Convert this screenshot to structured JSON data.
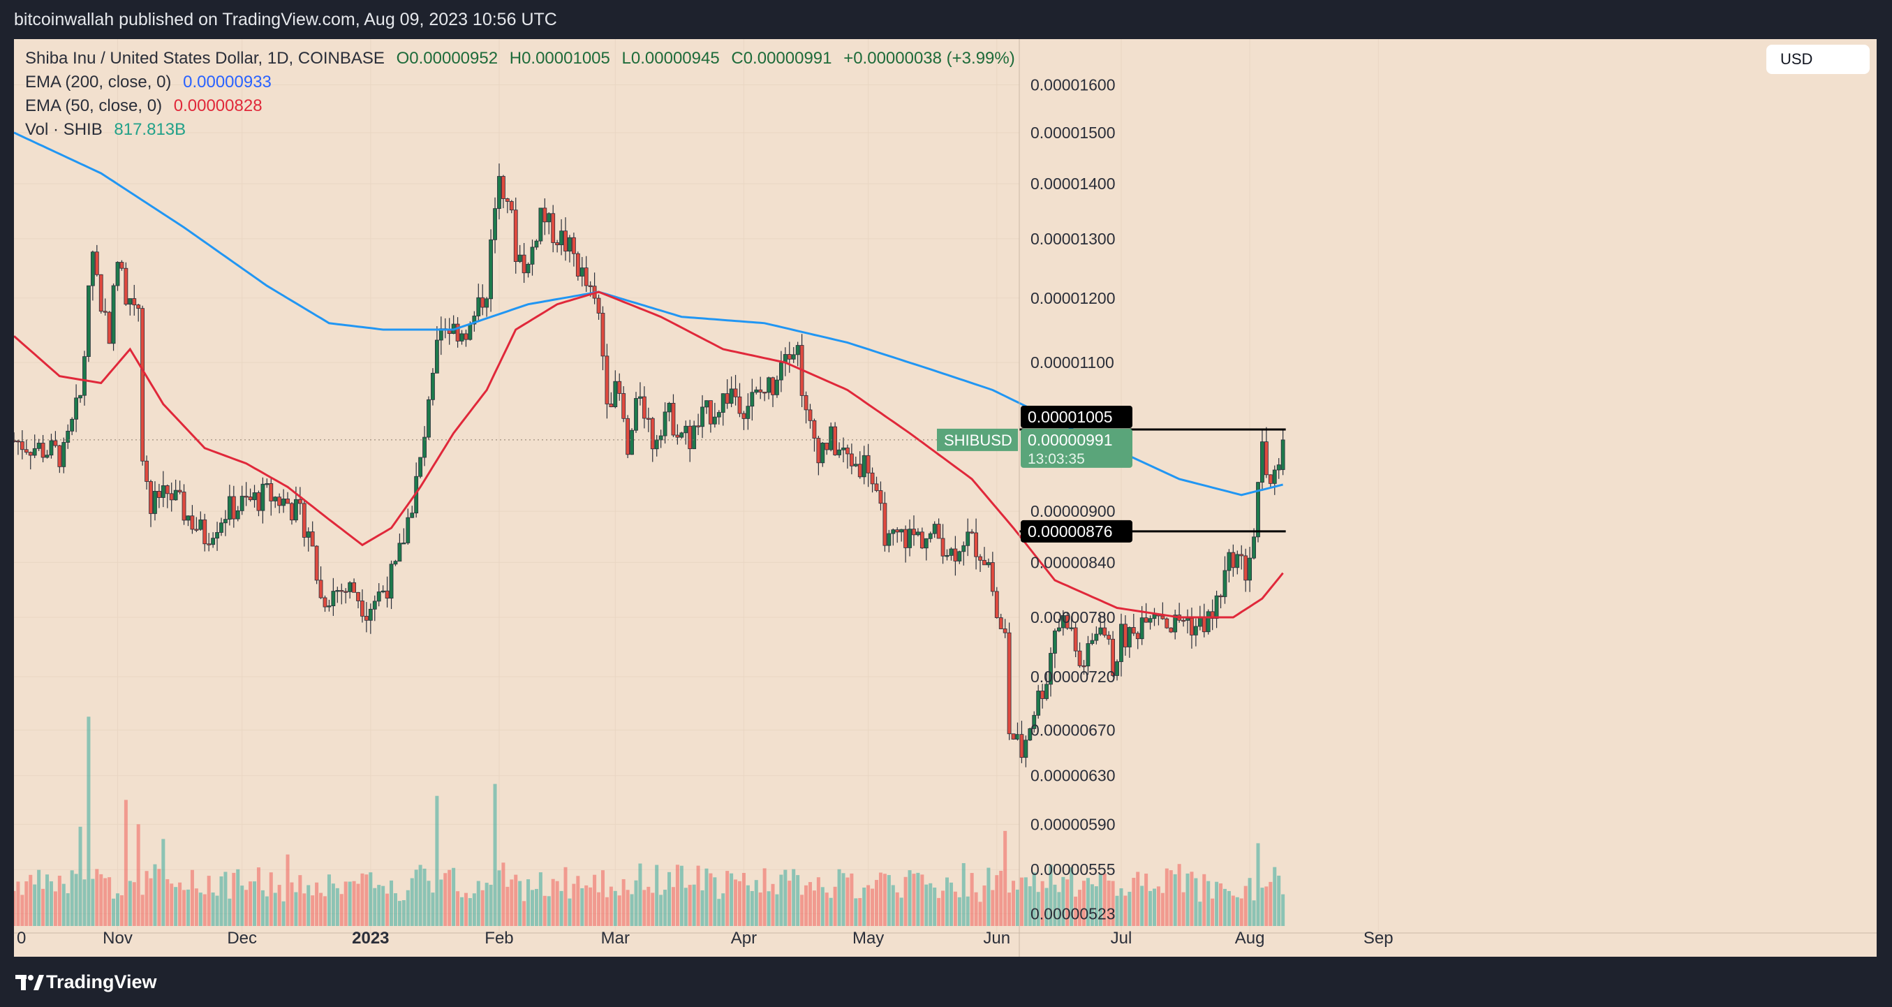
{
  "header": {
    "published_by": "bitcoinwallah published on TradingView.com, Aug 09, 2023 10:56 UTC"
  },
  "legend": {
    "symbol": "Shiba Inu / United States Dollar, 1D, COINBASE",
    "open": "O0.00000952",
    "high": "H0.00001005",
    "low": "L0.00000945",
    "close": "C0.00000991",
    "change": "+0.00000038 (+3.99%)",
    "ema200_label": "EMA (200, close, 0)",
    "ema200_value": "0.00000933",
    "ema50_label": "EMA (50, close, 0)",
    "ema50_value": "0.00000828",
    "vol_label": "Vol · SHIB",
    "vol_value": "817.813B"
  },
  "currency_button": "USD",
  "footer": {
    "brand": "TradingView"
  },
  "colors": {
    "background": "#f2e0ce",
    "frame": "#1e222d",
    "up": "#26a69a",
    "up_body": "#1d7a4c",
    "down": "#e04a3f",
    "ema200": "#2196f3",
    "ema50": "#e0283a",
    "price_tag": "#5aa57a"
  },
  "chart_data": {
    "type": "candlestick",
    "y_scale": "log",
    "ylim": [
      5e-06,
      1.67e-05
    ],
    "y_ticks": [
      "0.00001600",
      "0.00001500",
      "0.00001400",
      "0.00001300",
      "0.00001200",
      "0.00001100",
      "0.00000900",
      "0.00000840",
      "0.00000780",
      "0.00000720",
      "0.00000670",
      "0.00000630",
      "0.00000590",
      "0.00000555",
      "0.00000523"
    ],
    "x_ticks": [
      {
        "label": "0",
        "day": -32
      },
      {
        "label": "Nov",
        "day": -61
      },
      {
        "label": "Dec",
        "day": -31
      },
      {
        "label": "2023",
        "day": 0
      },
      {
        "label": "Feb",
        "day": 31
      },
      {
        "label": "Mar",
        "day": 59
      },
      {
        "label": "Apr",
        "day": 90
      },
      {
        "label": "May",
        "day": 120
      },
      {
        "label": "Jun",
        "day": 151
      },
      {
        "label": "Jul",
        "day": 181
      },
      {
        "label": "Aug",
        "day": 212
      },
      {
        "label": "Sep",
        "day": 243
      }
    ],
    "price_labels": {
      "high": "0.00001005",
      "current": "0.00000991",
      "countdown": "13:03:35",
      "low": "0.00000876",
      "symbol_tag": "SHIBUSD"
    },
    "high_level": 1.005e-05,
    "low_level": 8.76e-06,
    "current_price": 9.91e-06,
    "close_anchors": [
      [
        -86,
        9.9e-06
      ],
      [
        -80,
        9.8e-06
      ],
      [
        -74,
        9.7e-06
      ],
      [
        -70,
        1.05e-05
      ],
      [
        -67,
        1.28e-05
      ],
      [
        -65,
        1.19e-05
      ],
      [
        -63,
        1.15e-05
      ],
      [
        -61,
        1.26e-05
      ],
      [
        -59,
        1.21e-05
      ],
      [
        -56,
        1.19e-05
      ],
      [
        -55,
        9.8e-06
      ],
      [
        -53,
        9e-06
      ],
      [
        -50,
        9.3e-06
      ],
      [
        -45,
        9e-06
      ],
      [
        -40,
        8.7e-06
      ],
      [
        -35,
        9e-06
      ],
      [
        -30,
        9.1e-06
      ],
      [
        -25,
        9.2e-06
      ],
      [
        -20,
        9.1e-06
      ],
      [
        -15,
        8.8e-06
      ],
      [
        -12,
        8e-06
      ],
      [
        -8,
        8.1e-06
      ],
      [
        -4,
        8.1e-06
      ],
      [
        -1,
        7.9e-06
      ],
      [
        3,
        8.1e-06
      ],
      [
        6,
        8.3e-06
      ],
      [
        9,
        8.9e-06
      ],
      [
        12,
        9.6e-06
      ],
      [
        14,
        1.03e-05
      ],
      [
        17,
        1.16e-05
      ],
      [
        20,
        1.15e-05
      ],
      [
        24,
        1.15e-05
      ],
      [
        28,
        1.22e-05
      ],
      [
        31,
        1.42e-05
      ],
      [
        33,
        1.38e-05
      ],
      [
        35,
        1.28e-05
      ],
      [
        38,
        1.25e-05
      ],
      [
        41,
        1.35e-05
      ],
      [
        43,
        1.32e-05
      ],
      [
        46,
        1.3e-05
      ],
      [
        49,
        1.27e-05
      ],
      [
        52,
        1.22e-05
      ],
      [
        55,
        1.17e-05
      ],
      [
        57,
        1.06e-05
      ],
      [
        60,
        1.05e-05
      ],
      [
        62,
        9.7e-06
      ],
      [
        65,
        1.06e-05
      ],
      [
        68,
        9.9e-06
      ],
      [
        71,
        1.03e-05
      ],
      [
        74,
        1.01e-05
      ],
      [
        77,
        9.9e-06
      ],
      [
        80,
        1.02e-05
      ],
      [
        84,
        1.04e-05
      ],
      [
        87,
        1.06e-05
      ],
      [
        90,
        1.04e-05
      ],
      [
        93,
        1.05e-05
      ],
      [
        97,
        1.07e-05
      ],
      [
        100,
        1.13e-05
      ],
      [
        103,
        1.12e-05
      ],
      [
        105,
        1.02e-05
      ],
      [
        108,
        9.8e-06
      ],
      [
        111,
        9.9e-06
      ],
      [
        114,
        9.7e-06
      ],
      [
        117,
        9.6e-06
      ],
      [
        120,
        9.6e-06
      ],
      [
        122,
        9.1e-06
      ],
      [
        125,
        8.6e-06
      ],
      [
        128,
        8.7e-06
      ],
      [
        131,
        8.7e-06
      ],
      [
        134,
        8.7e-06
      ],
      [
        137,
        8.7e-06
      ],
      [
        140,
        8.5e-06
      ],
      [
        143,
        8.7e-06
      ],
      [
        146,
        8.6e-06
      ],
      [
        149,
        8.4e-06
      ],
      [
        151,
        7.8e-06
      ],
      [
        153,
        7.6e-06
      ],
      [
        154,
        6.7e-06
      ],
      [
        157,
        6.5e-06
      ],
      [
        160,
        6.9e-06
      ],
      [
        163,
        7.2e-06
      ],
      [
        165,
        7.7e-06
      ],
      [
        168,
        7.8e-06
      ],
      [
        171,
        7.3e-06
      ],
      [
        173,
        7.4e-06
      ],
      [
        176,
        7.8e-06
      ],
      [
        179,
        7.3e-06
      ],
      [
        181,
        7.6e-06
      ],
      [
        184,
        7.6e-06
      ],
      [
        187,
        7.9e-06
      ],
      [
        190,
        7.9e-06
      ],
      [
        193,
        7.7e-06
      ],
      [
        196,
        7.8e-06
      ],
      [
        199,
        7.7e-06
      ],
      [
        203,
        7.8e-06
      ],
      [
        205,
        8.1e-06
      ],
      [
        208,
        8.5e-06
      ],
      [
        211,
        8.3e-06
      ],
      [
        213,
        8.7e-06
      ],
      [
        215,
        9.8e-06
      ],
      [
        217,
        9.2e-06
      ],
      [
        219,
        9.5e-06
      ],
      [
        220,
        9.91e-06
      ]
    ],
    "ema200_anchors": [
      [
        -86,
        1.5e-05
      ],
      [
        -65,
        1.42e-05
      ],
      [
        -45,
        1.32e-05
      ],
      [
        -25,
        1.22e-05
      ],
      [
        -10,
        1.16e-05
      ],
      [
        3,
        1.15e-05
      ],
      [
        20,
        1.15e-05
      ],
      [
        38,
        1.19e-05
      ],
      [
        55,
        1.21e-05
      ],
      [
        75,
        1.17e-05
      ],
      [
        95,
        1.16e-05
      ],
      [
        115,
        1.13e-05
      ],
      [
        135,
        1.09e-05
      ],
      [
        150,
        1.06e-05
      ],
      [
        175,
        9.9e-06
      ],
      [
        195,
        9.4e-06
      ],
      [
        210,
        9.2e-06
      ],
      [
        220,
        9.33e-06
      ]
    ],
    "ema50_anchors": [
      [
        -86,
        1.14e-05
      ],
      [
        -75,
        1.08e-05
      ],
      [
        -65,
        1.07e-05
      ],
      [
        -58,
        1.12e-05
      ],
      [
        -50,
        1.04e-05
      ],
      [
        -40,
        9.8e-06
      ],
      [
        -30,
        9.6e-06
      ],
      [
        -20,
        9.3e-06
      ],
      [
        -10,
        8.9e-06
      ],
      [
        -2,
        8.6e-06
      ],
      [
        5,
        8.8e-06
      ],
      [
        12,
        9.3e-06
      ],
      [
        20,
        1e-05
      ],
      [
        28,
        1.06e-05
      ],
      [
        35,
        1.15e-05
      ],
      [
        45,
        1.19e-05
      ],
      [
        55,
        1.21e-05
      ],
      [
        70,
        1.17e-05
      ],
      [
        85,
        1.12e-05
      ],
      [
        100,
        1.1e-05
      ],
      [
        115,
        1.06e-05
      ],
      [
        130,
        1e-05
      ],
      [
        145,
        9.4e-06
      ],
      [
        155,
        8.8e-06
      ],
      [
        165,
        8.2e-06
      ],
      [
        180,
        7.9e-06
      ],
      [
        195,
        7.8e-06
      ],
      [
        208,
        7.8e-06
      ],
      [
        215,
        8e-06
      ],
      [
        220,
        8.28e-06
      ]
    ],
    "volume_spikes": [
      [
        -68,
        3.2
      ],
      [
        -70,
        1.5
      ],
      [
        -59,
        1.9
      ],
      [
        -56,
        1.6
      ],
      [
        -50,
        1.2
      ],
      [
        16,
        2.0
      ],
      [
        30,
        2.1
      ],
      [
        153,
        1.3
      ],
      [
        214,
        1.2
      ],
      [
        -20,
        1.0
      ],
      [
        12,
        0.9
      ]
    ]
  }
}
